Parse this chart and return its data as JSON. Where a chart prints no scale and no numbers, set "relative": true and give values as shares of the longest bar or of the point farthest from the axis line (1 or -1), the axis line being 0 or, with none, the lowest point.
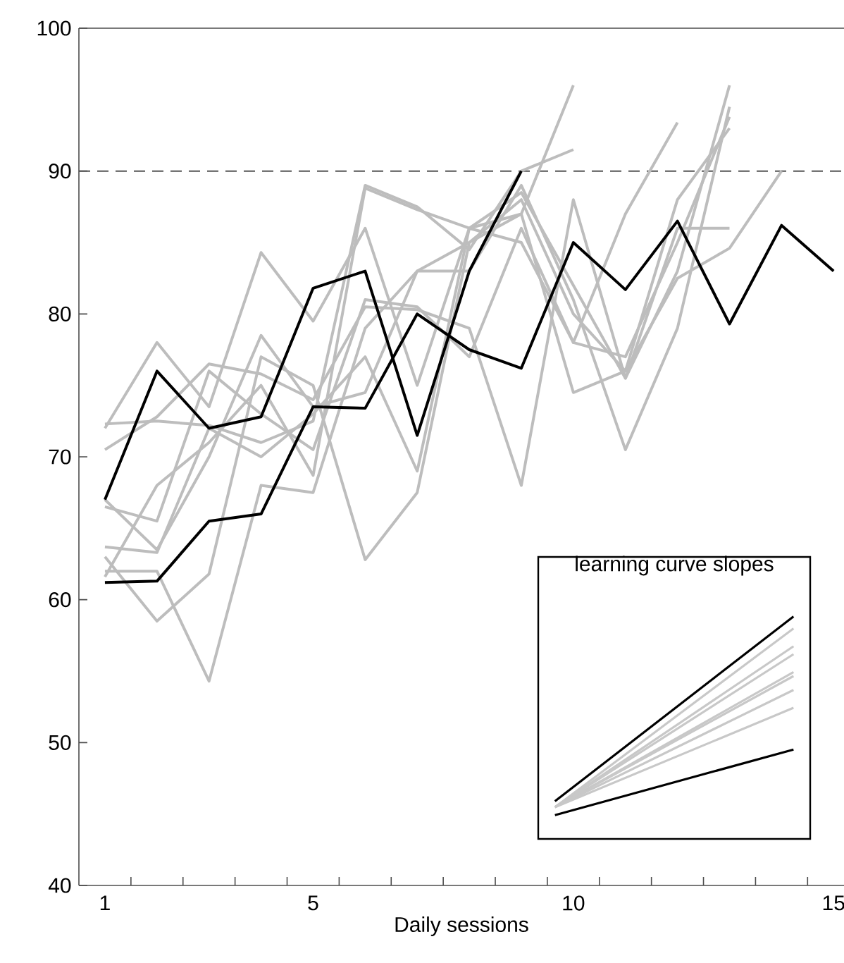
{
  "chart_data": [
    {
      "type": "line",
      "xlabel": "Daily sessions",
      "x": [
        1,
        2,
        3,
        4,
        5,
        6,
        7,
        8,
        9,
        10,
        11,
        12,
        13,
        14,
        15
      ],
      "xlim": [
        0.5,
        15.2
      ],
      "ylim": [
        40,
        100
      ],
      "xticks": [
        1,
        {
          "value": 1.5,
          "label": null
        },
        {
          "value": 2.5,
          "label": null
        },
        {
          "value": 3.5,
          "label": null
        },
        {
          "value": 4.5,
          "label": null
        },
        5,
        {
          "value": 5.5,
          "label": null
        },
        {
          "value": 6.5,
          "label": null
        },
        {
          "value": 7.5,
          "label": null
        },
        {
          "value": 8.5,
          "label": null
        },
        {
          "value": 9.5,
          "label": null
        },
        10,
        {
          "value": 10.5,
          "label": null
        },
        {
          "value": 11.5,
          "label": null
        },
        {
          "value": 12.5,
          "label": null
        },
        {
          "value": 13.5,
          "label": null
        },
        {
          "value": 14.5,
          "label": null
        },
        15
      ],
      "yticks": [
        40,
        50,
        60,
        70,
        80,
        90,
        100
      ],
      "grid": false,
      "marker": "none",
      "line_style": "solid",
      "ref_lines": [
        {
          "axis": "y",
          "value": 90,
          "color": "#555555",
          "line_style": "dashed"
        }
      ],
      "series": [
        {
          "color": "#bdbdbd",
          "values": [
            72.3,
            72.5,
            72.2,
            71,
            72.5,
            89,
            87.5,
            84.5,
            90,
            91.5,
            null,
            null,
            null,
            null,
            null
          ]
        },
        {
          "color": "#bdbdbd",
          "values": [
            72,
            78,
            73.5,
            84.3,
            79.5,
            86,
            75,
            86,
            87,
            96,
            null,
            null,
            null,
            null,
            null
          ]
        },
        {
          "color": "#bdbdbd",
          "values": [
            70.5,
            72.8,
            76.5,
            75.8,
            74,
            80.5,
            80.3,
            79,
            68,
            88,
            75.5,
            83,
            96,
            null,
            null
          ]
        },
        {
          "color": "#bdbdbd",
          "values": [
            67,
            63.5,
            70,
            78.5,
            73.5,
            74.5,
            83,
            83,
            89,
            81,
            70.5,
            79,
            94.5,
            null,
            null
          ]
        },
        {
          "color": "#bdbdbd",
          "values": [
            66.5,
            65.5,
            76,
            73,
            70.5,
            81,
            80.5,
            77,
            86,
            78,
            87,
            93.4,
            null,
            null,
            null
          ]
        },
        {
          "color": "#bdbdbd",
          "values": [
            63.7,
            63.3,
            72,
            70,
            73,
            77,
            69,
            86,
            85,
            78,
            77,
            85,
            93.8,
            null,
            null
          ]
        },
        {
          "color": "#bdbdbd",
          "values": [
            63,
            58.5,
            61.8,
            77,
            75,
            62.8,
            67.5,
            85,
            87,
            74.5,
            76,
            82.5,
            84.6,
            90,
            null
          ]
        },
        {
          "color": "#bdbdbd",
          "values": [
            62,
            62,
            54.3,
            68,
            67.5,
            79,
            83,
            85,
            88,
            80,
            76,
            88,
            93,
            null,
            null
          ]
        },
        {
          "color": "#bdbdbd",
          "values": [
            61.6,
            68,
            71,
            75,
            68.7,
            88.8,
            87.3,
            86,
            88.5,
            82,
            75.5,
            86,
            86,
            null,
            null
          ]
        },
        {
          "color": "#000000",
          "values": [
            67,
            76,
            72,
            72.8,
            81.8,
            83,
            71.5,
            83,
            90,
            null,
            null,
            null,
            null,
            null,
            null
          ]
        },
        {
          "color": "#000000",
          "values": [
            61.2,
            61.3,
            65.5,
            66,
            73.5,
            73.4,
            80,
            77.5,
            76.2,
            85,
            81.7,
            86.5,
            79.3,
            86.2,
            83
          ]
        }
      ]
    },
    {
      "type": "line",
      "title": "learning curve slopes",
      "relative": true,
      "categories": [
        null,
        null
      ],
      "marker": "none",
      "series": [
        {
          "color": "#c8c8c8",
          "values": [
            0.04,
            0.94
          ]
        },
        {
          "color": "#c8c8c8",
          "values": [
            0.04,
            0.85
          ]
        },
        {
          "color": "#c8c8c8",
          "values": [
            0.04,
            0.81
          ]
        },
        {
          "color": "#c8c8c8",
          "values": [
            0.04,
            0.72
          ]
        },
        {
          "color": "#c8c8c8",
          "values": [
            0.04,
            0.7
          ]
        },
        {
          "color": "#c8c8c8",
          "values": [
            0.04,
            0.63
          ]
        },
        {
          "color": "#c8c8c8",
          "values": [
            0.04,
            0.54
          ]
        },
        {
          "color": "#000000",
          "values": [
            0.07,
            1
          ]
        },
        {
          "color": "#000000",
          "values": [
            0,
            0.33
          ]
        }
      ]
    }
  ]
}
